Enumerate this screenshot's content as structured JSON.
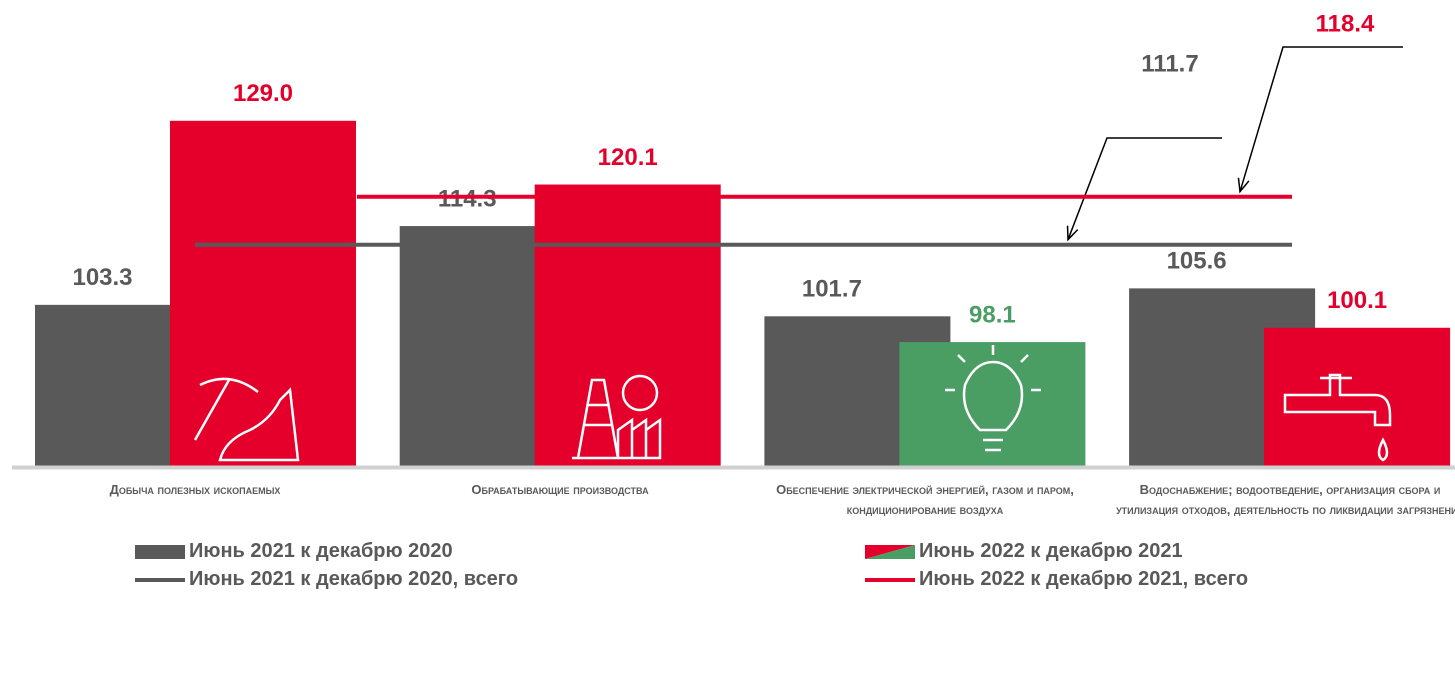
{
  "chart_data": {
    "type": "bar",
    "categories": [
      "Добыча полезных ископаемых",
      "Обрабатывающие производства",
      "Обеспечение электрической энергией, газом и паром, кондиционирование воздуха",
      "Водоснабжение; водоотведение, организация сбора и утилизация отходов, деятельность по ликвидации загрязнений"
    ],
    "series": [
      {
        "name": "Июнь 2021 к декабрю 2020",
        "color": "#595959",
        "values": [
          103.3,
          114.3,
          101.7,
          105.6
        ],
        "value_labels": [
          "103.3",
          "114.3",
          "101.7",
          "105.6"
        ]
      },
      {
        "name": "Июнь 2022 к декабрю 2021",
        "colors": [
          "#e4002b",
          "#e4002b",
          "#4a9e64",
          "#e4002b"
        ],
        "values": [
          129,
          120.1,
          98.1,
          100.1
        ],
        "value_labels": [
          "129.0",
          "120.1",
          "98.1",
          "100.1"
        ]
      }
    ],
    "reference_lines": [
      {
        "name": "Июнь 2021 к декабрю 2020, всего",
        "color": "#595959",
        "value": 111.7
      },
      {
        "name": "Июнь 2022 к декабрю 2021, всего",
        "color": "#e4002b",
        "value": 118.4
      }
    ],
    "ylim": [
      80.8,
      140
    ]
  }
}
